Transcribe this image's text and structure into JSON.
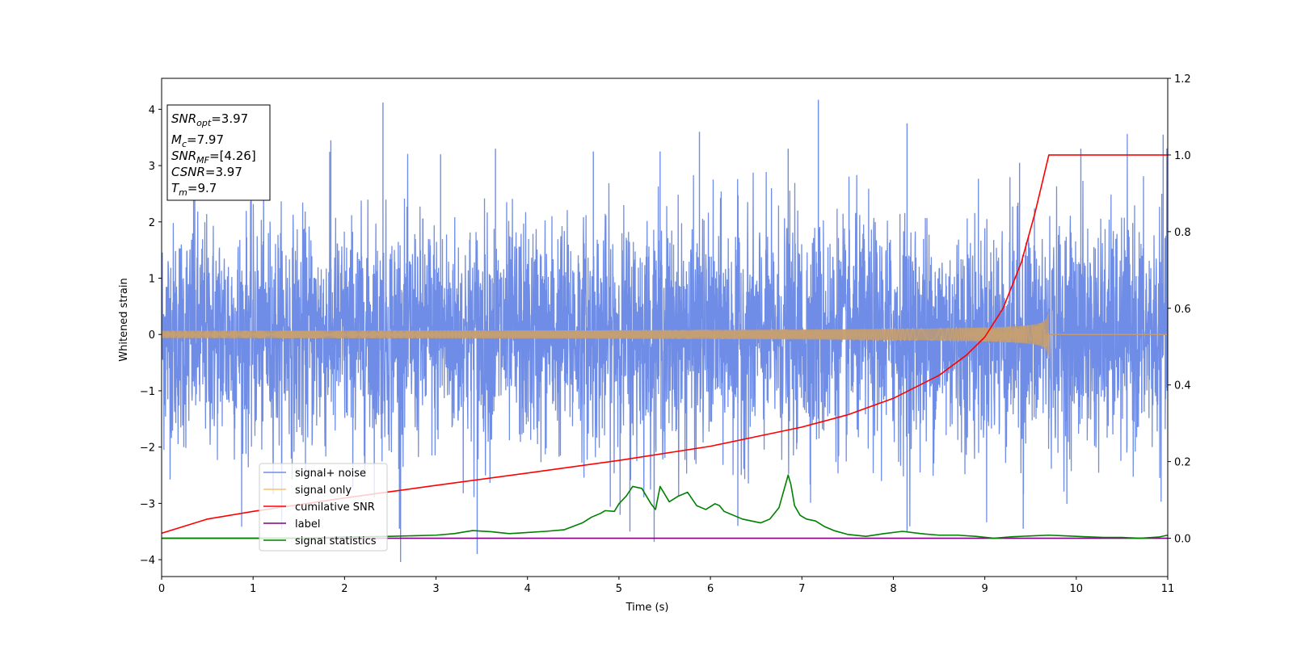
{
  "chart_data": {
    "type": "line",
    "xlabel": "Time (s)",
    "ylabel": "Whitened strain",
    "xlim": [
      0,
      11
    ],
    "ylim": [
      -4.3,
      4.55
    ],
    "y2lim": [
      -0.1,
      1.2
    ],
    "xticks": [
      "0",
      "1",
      "2",
      "3",
      "4",
      "5",
      "6",
      "7",
      "8",
      "9",
      "10",
      "11"
    ],
    "yticks": [
      "−4",
      "−3",
      "−2",
      "−1",
      "0",
      "1",
      "2",
      "3",
      "4"
    ],
    "y2ticks": [
      "0.0",
      "0.2",
      "0.4",
      "0.6",
      "0.8",
      "1.0",
      "1.2"
    ],
    "grid": false,
    "legend_placement": "lower-left",
    "annotation": {
      "lines": [
        {
          "sym": "SNR",
          "sub": "opt",
          "value": "=3.97"
        },
        {
          "sym": "M",
          "sub": "c",
          "value": "=7.97"
        },
        {
          "sym": "SNR",
          "sub": "MF",
          "value": "=[4.26]"
        },
        {
          "sym": "CSNR",
          "sub": "",
          "value": "=3.97"
        },
        {
          "sym": "T",
          "sub": "m",
          "value": "=9.7"
        }
      ]
    },
    "series": [
      {
        "name": "signal+ noise",
        "color": "#6f8de6",
        "axis": "left",
        "kind": "noise",
        "amplitude_sigma": 1.0,
        "spikes": [
          [
            0.35,
            3.1
          ],
          [
            1.85,
            3.45
          ],
          [
            2.42,
            4.12
          ],
          [
            3.05,
            3.2
          ],
          [
            3.45,
            -3.9
          ],
          [
            3.65,
            3.3
          ],
          [
            4.72,
            3.25
          ],
          [
            5.45,
            3.25
          ],
          [
            5.88,
            3.6
          ],
          [
            6.85,
            3.3
          ],
          [
            7.18,
            4.17
          ],
          [
            8.15,
            3.75
          ],
          [
            9.38,
            3.05
          ],
          [
            10.05,
            3.3
          ],
          [
            10.95,
            3.55
          ],
          [
            5.12,
            -3.5
          ],
          [
            6.3,
            -3.4
          ],
          [
            2.6,
            -3.45
          ],
          [
            9.42,
            -3.45
          ],
          [
            8.15,
            -3.5
          ]
        ]
      },
      {
        "name": "signal only",
        "color": "#f5c071",
        "axis": "left",
        "kind": "chirp",
        "t_merge": 9.7,
        "peak_amplitude": 0.47
      },
      {
        "name": "cumilative SNR",
        "color": "#ff0000",
        "axis": "right",
        "x": [
          0,
          0.5,
          1,
          2,
          3,
          4,
          5,
          6,
          7,
          7.5,
          8,
          8.5,
          8.8,
          9.0,
          9.2,
          9.4,
          9.55,
          9.65,
          9.7,
          11
        ],
        "y": [
          0.013,
          0.05,
          0.07,
          0.105,
          0.138,
          0.17,
          0.203,
          0.24,
          0.29,
          0.322,
          0.365,
          0.425,
          0.478,
          0.525,
          0.6,
          0.72,
          0.85,
          0.95,
          1.0,
          1.0
        ]
      },
      {
        "name": "label",
        "color": "#800080",
        "axis": "right",
        "x": [
          0,
          11
        ],
        "y": [
          0,
          0
        ]
      },
      {
        "name": "signal statistics",
        "color": "#008000",
        "axis": "right",
        "x": [
          0,
          0.5,
          1,
          1.5,
          2,
          2.5,
          3,
          3.2,
          3.4,
          3.6,
          3.8,
          4.0,
          4.2,
          4.4,
          4.6,
          4.7,
          4.8,
          4.85,
          4.95,
          5.0,
          5.08,
          5.15,
          5.25,
          5.35,
          5.4,
          5.45,
          5.55,
          5.65,
          5.75,
          5.85,
          5.95,
          6.05,
          6.1,
          6.15,
          6.25,
          6.35,
          6.45,
          6.55,
          6.65,
          6.75,
          6.85,
          6.88,
          6.92,
          6.98,
          7.05,
          7.15,
          7.25,
          7.35,
          7.5,
          7.7,
          7.9,
          8.1,
          8.3,
          8.5,
          8.7,
          8.9,
          9.1,
          9.3,
          9.5,
          9.7,
          9.9,
          10.1,
          10.3,
          10.5,
          10.7,
          10.9,
          11.0
        ],
        "y": [
          0,
          0,
          0,
          0,
          0.003,
          0.005,
          0.008,
          0.012,
          0.02,
          0.017,
          0.012,
          0.015,
          0.018,
          0.022,
          0.04,
          0.055,
          0.065,
          0.072,
          0.07,
          0.09,
          0.11,
          0.135,
          0.13,
          0.09,
          0.075,
          0.135,
          0.095,
          0.11,
          0.12,
          0.085,
          0.075,
          0.09,
          0.085,
          0.07,
          0.06,
          0.05,
          0.045,
          0.04,
          0.05,
          0.08,
          0.165,
          0.14,
          0.085,
          0.06,
          0.05,
          0.045,
          0.03,
          0.02,
          0.01,
          0.005,
          0.012,
          0.018,
          0.012,
          0.008,
          0.008,
          0.005,
          0.0,
          0.004,
          0.006,
          0.008,
          0.006,
          0.004,
          0.002,
          0.002,
          0.0,
          0.003,
          0.008
        ]
      }
    ]
  }
}
